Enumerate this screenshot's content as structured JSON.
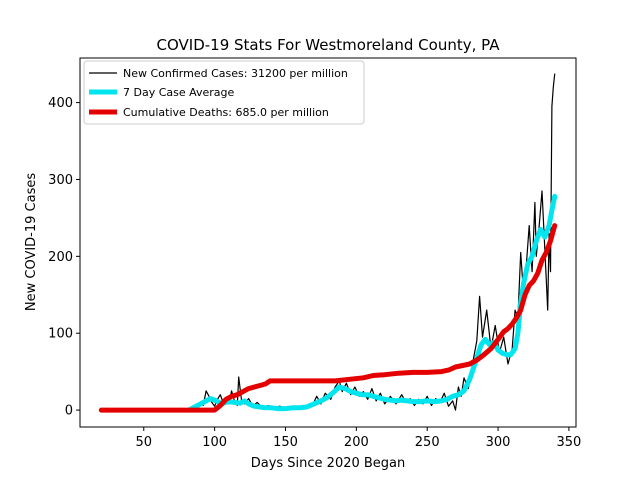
{
  "chart_data": {
    "type": "line",
    "title": "COVID-19 Stats For Westmoreland County, PA",
    "xlabel": "Days Since 2020 Began",
    "ylabel": "New COVID-19 Cases",
    "xlim": [
      5,
      355
    ],
    "ylim": [
      -22,
      458
    ],
    "xticks": [
      50,
      100,
      150,
      200,
      250,
      300,
      350
    ],
    "yticks": [
      0,
      100,
      200,
      300,
      400
    ],
    "grid": false,
    "legend_position": "top-left",
    "series": [
      {
        "name": "New Confirmed Cases: 31200 per million",
        "color": "#000000",
        "style": "thin",
        "points": [
          [
            82,
            0
          ],
          [
            85,
            4
          ],
          [
            88,
            2
          ],
          [
            90,
            10
          ],
          [
            92,
            6
          ],
          [
            94,
            25
          ],
          [
            96,
            18
          ],
          [
            98,
            10
          ],
          [
            100,
            5
          ],
          [
            102,
            14
          ],
          [
            104,
            20
          ],
          [
            106,
            10
          ],
          [
            108,
            16
          ],
          [
            110,
            8
          ],
          [
            112,
            25
          ],
          [
            114,
            12
          ],
          [
            116,
            6
          ],
          [
            117,
            43
          ],
          [
            119,
            12
          ],
          [
            121,
            8
          ],
          [
            124,
            15
          ],
          [
            127,
            5
          ],
          [
            130,
            10
          ],
          [
            134,
            3
          ],
          [
            138,
            6
          ],
          [
            142,
            3
          ],
          [
            146,
            5
          ],
          [
            150,
            2
          ],
          [
            154,
            4
          ],
          [
            158,
            2
          ],
          [
            162,
            6
          ],
          [
            166,
            4
          ],
          [
            170,
            10
          ],
          [
            172,
            18
          ],
          [
            175,
            8
          ],
          [
            178,
            22
          ],
          [
            182,
            14
          ],
          [
            185,
            30
          ],
          [
            188,
            38
          ],
          [
            190,
            24
          ],
          [
            193,
            35
          ],
          [
            196,
            20
          ],
          [
            199,
            30
          ],
          [
            202,
            18
          ],
          [
            205,
            24
          ],
          [
            208,
            14
          ],
          [
            211,
            28
          ],
          [
            214,
            12
          ],
          [
            217,
            22
          ],
          [
            220,
            8
          ],
          [
            224,
            18
          ],
          [
            228,
            8
          ],
          [
            232,
            20
          ],
          [
            235,
            10
          ],
          [
            238,
            15
          ],
          [
            241,
            6
          ],
          [
            244,
            14
          ],
          [
            247,
            8
          ],
          [
            250,
            18
          ],
          [
            253,
            6
          ],
          [
            256,
            15
          ],
          [
            259,
            10
          ],
          [
            262,
            22
          ],
          [
            265,
            5
          ],
          [
            268,
            12
          ],
          [
            270,
            0
          ],
          [
            272,
            30
          ],
          [
            274,
            18
          ],
          [
            276,
            42
          ],
          [
            279,
            28
          ],
          [
            282,
            60
          ],
          [
            285,
            90
          ],
          [
            287,
            148
          ],
          [
            289,
            95
          ],
          [
            292,
            130
          ],
          [
            295,
            80
          ],
          [
            298,
            110
          ],
          [
            301,
            75
          ],
          [
            304,
            95
          ],
          [
            307,
            60
          ],
          [
            310,
            80
          ],
          [
            312,
            130
          ],
          [
            314,
            120
          ],
          [
            316,
            205
          ],
          [
            318,
            150
          ],
          [
            320,
            190
          ],
          [
            322,
            240
          ],
          [
            324,
            180
          ],
          [
            326,
            270
          ],
          [
            327,
            200
          ],
          [
            329,
            240
          ],
          [
            331,
            285
          ],
          [
            333,
            210
          ],
          [
            335,
            130
          ],
          [
            336,
            230
          ],
          [
            337,
            180
          ],
          [
            338,
            395
          ],
          [
            339,
            420
          ],
          [
            340,
            437
          ]
        ]
      },
      {
        "name": "7 Day Case Average",
        "color": "#00e5ee",
        "style": "thick",
        "points": [
          [
            82,
            0
          ],
          [
            86,
            4
          ],
          [
            90,
            8
          ],
          [
            94,
            12
          ],
          [
            97,
            15
          ],
          [
            100,
            13
          ],
          [
            103,
            10
          ],
          [
            106,
            9
          ],
          [
            110,
            11
          ],
          [
            114,
            10
          ],
          [
            118,
            9
          ],
          [
            121,
            12
          ],
          [
            124,
            8
          ],
          [
            128,
            5
          ],
          [
            132,
            4
          ],
          [
            136,
            3
          ],
          [
            140,
            3
          ],
          [
            145,
            2
          ],
          [
            150,
            2
          ],
          [
            155,
            3
          ],
          [
            160,
            3
          ],
          [
            165,
            4
          ],
          [
            170,
            8
          ],
          [
            175,
            12
          ],
          [
            180,
            17
          ],
          [
            185,
            25
          ],
          [
            188,
            30
          ],
          [
            192,
            28
          ],
          [
            196,
            24
          ],
          [
            200,
            22
          ],
          [
            204,
            20
          ],
          [
            208,
            20
          ],
          [
            212,
            18
          ],
          [
            216,
            16
          ],
          [
            220,
            14
          ],
          [
            224,
            13
          ],
          [
            228,
            12
          ],
          [
            232,
            13
          ],
          [
            236,
            12
          ],
          [
            240,
            11
          ],
          [
            245,
            11
          ],
          [
            250,
            12
          ],
          [
            255,
            11
          ],
          [
            260,
            12
          ],
          [
            264,
            14
          ],
          [
            268,
            18
          ],
          [
            272,
            20
          ],
          [
            276,
            25
          ],
          [
            280,
            40
          ],
          [
            284,
            62
          ],
          [
            288,
            85
          ],
          [
            291,
            92
          ],
          [
            294,
            85
          ],
          [
            297,
            88
          ],
          [
            300,
            78
          ],
          [
            303,
            74
          ],
          [
            306,
            72
          ],
          [
            309,
            72
          ],
          [
            312,
            80
          ],
          [
            314,
            100
          ],
          [
            316,
            140
          ],
          [
            318,
            165
          ],
          [
            321,
            190
          ],
          [
            324,
            200
          ],
          [
            327,
            220
          ],
          [
            330,
            235
          ],
          [
            333,
            225
          ],
          [
            336,
            240
          ],
          [
            338,
            260
          ],
          [
            340,
            278
          ]
        ]
      },
      {
        "name": "Cumulative Deaths: 685.0 per million",
        "color": "#e50000",
        "style": "thick",
        "points": [
          [
            20,
            0
          ],
          [
            60,
            0
          ],
          [
            80,
            0
          ],
          [
            95,
            0
          ],
          [
            100,
            0
          ],
          [
            104,
            6
          ],
          [
            108,
            14
          ],
          [
            112,
            18
          ],
          [
            116,
            20
          ],
          [
            120,
            24
          ],
          [
            124,
            28
          ],
          [
            128,
            30
          ],
          [
            132,
            32
          ],
          [
            136,
            34
          ],
          [
            139,
            38
          ],
          [
            160,
            38
          ],
          [
            185,
            38
          ],
          [
            195,
            40
          ],
          [
            205,
            42
          ],
          [
            212,
            45
          ],
          [
            220,
            46
          ],
          [
            230,
            48
          ],
          [
            240,
            49
          ],
          [
            250,
            49
          ],
          [
            260,
            50
          ],
          [
            265,
            52
          ],
          [
            270,
            56
          ],
          [
            275,
            58
          ],
          [
            280,
            60
          ],
          [
            285,
            65
          ],
          [
            290,
            72
          ],
          [
            295,
            80
          ],
          [
            300,
            92
          ],
          [
            304,
            102
          ],
          [
            307,
            106
          ],
          [
            310,
            112
          ],
          [
            313,
            120
          ],
          [
            316,
            130
          ],
          [
            319,
            150
          ],
          [
            322,
            162
          ],
          [
            325,
            168
          ],
          [
            328,
            178
          ],
          [
            331,
            195
          ],
          [
            334,
            205
          ],
          [
            337,
            220
          ],
          [
            340,
            240
          ]
        ]
      }
    ]
  }
}
